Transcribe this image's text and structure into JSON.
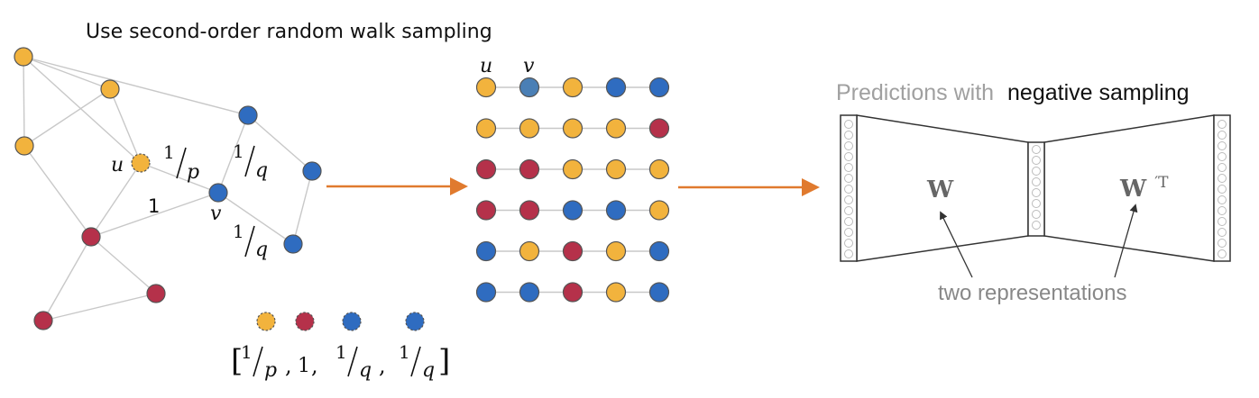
{
  "title": "Use second-order random walk sampling",
  "graph": {
    "node_u_label": "u",
    "node_v_label": "v",
    "edge_labels": {
      "u_v": "1",
      "u_p_num": "1",
      "u_p_den": "p",
      "q1_num": "1",
      "q1_den": "q",
      "q2_num": "1",
      "q2_den": "q"
    }
  },
  "probabilities": {
    "open_bracket": "[",
    "close_bracket": "]",
    "items": [
      {
        "num": "1",
        "den": "p"
      },
      {
        "value": "1"
      },
      {
        "num": "1",
        "den": "q"
      },
      {
        "num": "1",
        "den": "q"
      }
    ],
    "separator": ","
  },
  "walks": {
    "header": [
      "u",
      "v"
    ],
    "rows": [
      [
        "orange",
        "steel",
        "orange",
        "blue",
        "blue"
      ],
      [
        "orange",
        "orange",
        "orange",
        "orange",
        "red"
      ],
      [
        "red",
        "red",
        "orange",
        "orange",
        "orange"
      ],
      [
        "red",
        "red",
        "blue",
        "blue",
        "orange"
      ],
      [
        "blue",
        "orange",
        "red",
        "orange",
        "blue"
      ],
      [
        "blue",
        "blue",
        "red",
        "orange",
        "blue"
      ]
    ]
  },
  "skipgram": {
    "title_gray": "Predictions with",
    "title_bold": "negative sampling",
    "w_label": "W",
    "wt_label": "W",
    "wt_sup": "′T",
    "annotation": "two representations"
  },
  "colors": {
    "orange": "#f2b33d",
    "red": "#b5314a",
    "blue": "#2f6cc0",
    "steel": "#4a7fb5",
    "edge": "#c8c8c8",
    "arrow": "#e07a2e"
  }
}
